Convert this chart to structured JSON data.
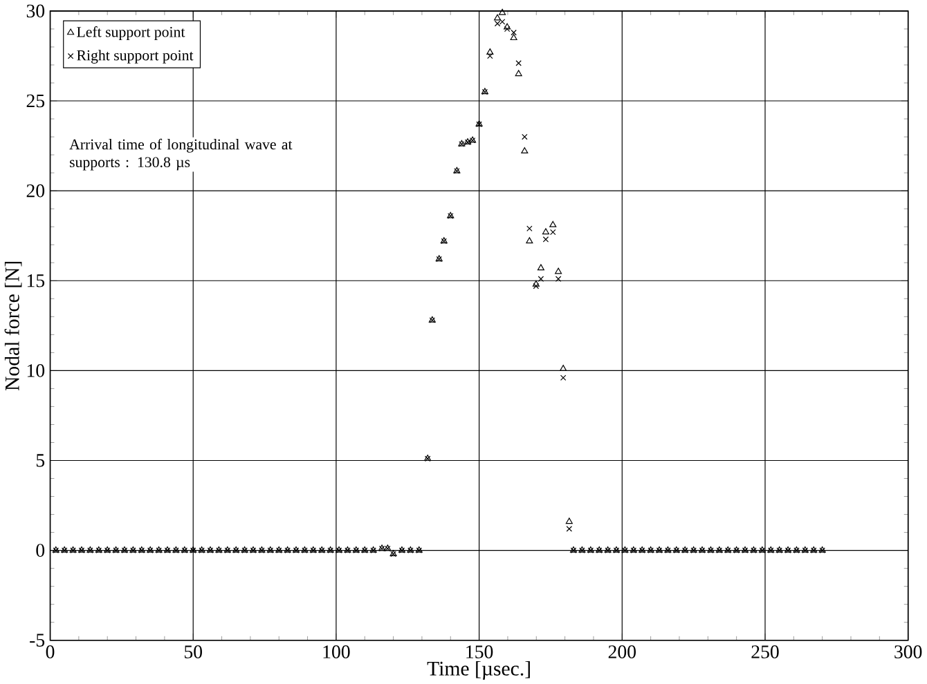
{
  "chart_data": {
    "type": "scatter",
    "xlabel": "Time [µsec.]",
    "ylabel": "Nodal force [N]",
    "annotations": [
      "Arrival time of longitudinal wave at supports  : 130.8 µs"
    ],
    "x": [
      2,
      5,
      8,
      11,
      14,
      17,
      20,
      23,
      26,
      29,
      32,
      35,
      38,
      41,
      44,
      47,
      50,
      53,
      56,
      59,
      62,
      65,
      68,
      71,
      74,
      77,
      80,
      83,
      86,
      89,
      92,
      95,
      98,
      101,
      104,
      107,
      110,
      113,
      116,
      118,
      120,
      123,
      126,
      129,
      132,
      133.6,
      136,
      137.7,
      140,
      142.2,
      143.9,
      146,
      147.7,
      150,
      152,
      153.8,
      156.4,
      158.1,
      159.8,
      162.1,
      163.8,
      165.9,
      167.6,
      169.9,
      171.6,
      173.3,
      175.8,
      177.7,
      179.4,
      181.5,
      183,
      186,
      189,
      192,
      195,
      198,
      201,
      204,
      207,
      210,
      213,
      216,
      219,
      222,
      225,
      228,
      231,
      234,
      237,
      240,
      243,
      246,
      249,
      252,
      255,
      258,
      261,
      264,
      267,
      270
    ],
    "series": [
      {
        "name": "Left support point",
        "color": "#000000",
        "marker": "triangle",
        "values": [
          0,
          0,
          0,
          0,
          0,
          0,
          0,
          0,
          0,
          0,
          0,
          0,
          0,
          0,
          0,
          0,
          0,
          0,
          0,
          0,
          0,
          0,
          0,
          0,
          0,
          0,
          0,
          0,
          0,
          0,
          0,
          0,
          0,
          0,
          0,
          0,
          0,
          0,
          0.1,
          0.1,
          -0.2,
          0,
          0,
          0,
          5.1,
          12.8,
          16.2,
          17.2,
          18.6,
          21.1,
          22.6,
          22.7,
          22.8,
          23.7,
          25.5,
          27.7,
          29.6,
          29.9,
          29.1,
          28.5,
          26.5,
          22.2,
          17.2,
          14.8,
          15.7,
          17.7,
          18.1,
          15.5,
          10.1,
          1.6,
          0,
          0,
          0,
          0,
          0,
          0,
          0,
          0,
          0,
          0,
          0,
          0,
          0,
          0,
          0,
          0,
          0,
          0,
          0,
          0,
          0,
          0,
          0,
          0,
          0,
          0,
          0,
          0,
          0,
          0
        ]
      },
      {
        "name": "Right support point",
        "color": "#000000",
        "marker": "cross",
        "values": [
          0,
          0,
          0,
          0,
          0,
          0,
          0,
          0,
          0,
          0,
          0,
          0,
          0,
          0,
          0,
          0,
          0,
          0,
          0,
          0,
          0,
          0,
          0,
          0,
          0,
          0,
          0,
          0,
          0,
          0,
          0,
          0,
          0,
          0,
          0,
          0,
          0,
          0,
          0.1,
          0.1,
          -0.2,
          0,
          0,
          0,
          5.1,
          12.8,
          16.2,
          17.2,
          18.6,
          21.1,
          22.6,
          22.7,
          22.8,
          23.7,
          25.5,
          27.5,
          29.3,
          29.4,
          29.0,
          28.8,
          27.1,
          23.0,
          17.9,
          14.7,
          15.1,
          17.3,
          17.7,
          15.1,
          9.6,
          1.2,
          0,
          0,
          0,
          0,
          0,
          0,
          0,
          0,
          0,
          0,
          0,
          0,
          0,
          0,
          0,
          0,
          0,
          0,
          0,
          0,
          0,
          0,
          0,
          0,
          0,
          0,
          0,
          0,
          0,
          0
        ]
      }
    ],
    "xlim": [
      0,
      300
    ],
    "xticks": [
      0,
      50,
      100,
      150,
      200,
      250,
      300
    ],
    "ylim": [
      -5,
      30
    ],
    "yticks": [
      -5,
      0,
      5,
      10,
      15,
      20,
      25,
      30
    ],
    "grid": true,
    "legend": "top left"
  }
}
